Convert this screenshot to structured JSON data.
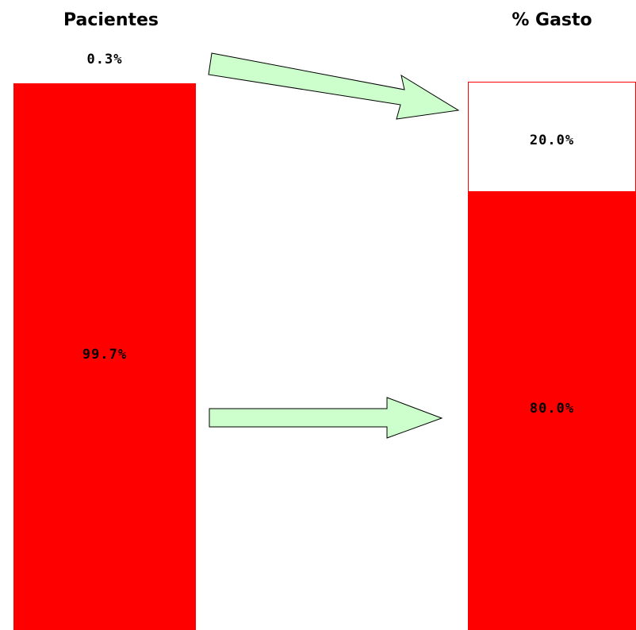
{
  "chart_data": {
    "type": "bar",
    "subtype": "stacked-100-percent",
    "categories": [
      "Pacientes",
      "% Gasto"
    ],
    "series": [
      {
        "values": [
          0.3,
          20.0
        ],
        "labels": [
          "0.3%",
          "20.0%"
        ]
      },
      {
        "values": [
          99.7,
          80.0
        ],
        "labels": [
          "99.7%",
          "80.0%"
        ]
      }
    ],
    "title": "",
    "xlabel": "",
    "ylabel": "",
    "ylim": [
      0,
      100
    ],
    "grid": false,
    "legend": "none"
  },
  "colors": {
    "major_segment": "#ff0000",
    "minor_segment": "#ffffff",
    "minor_border": "#ff0000",
    "arrow_fill": "#ccffcc",
    "arrow_stroke": "#000000"
  },
  "arrows": [
    {
      "from": "Pacientes 0.3%",
      "to": "% Gasto 20.0%"
    },
    {
      "from": "Pacientes 99.7%",
      "to": "% Gasto 80.0%"
    }
  ]
}
